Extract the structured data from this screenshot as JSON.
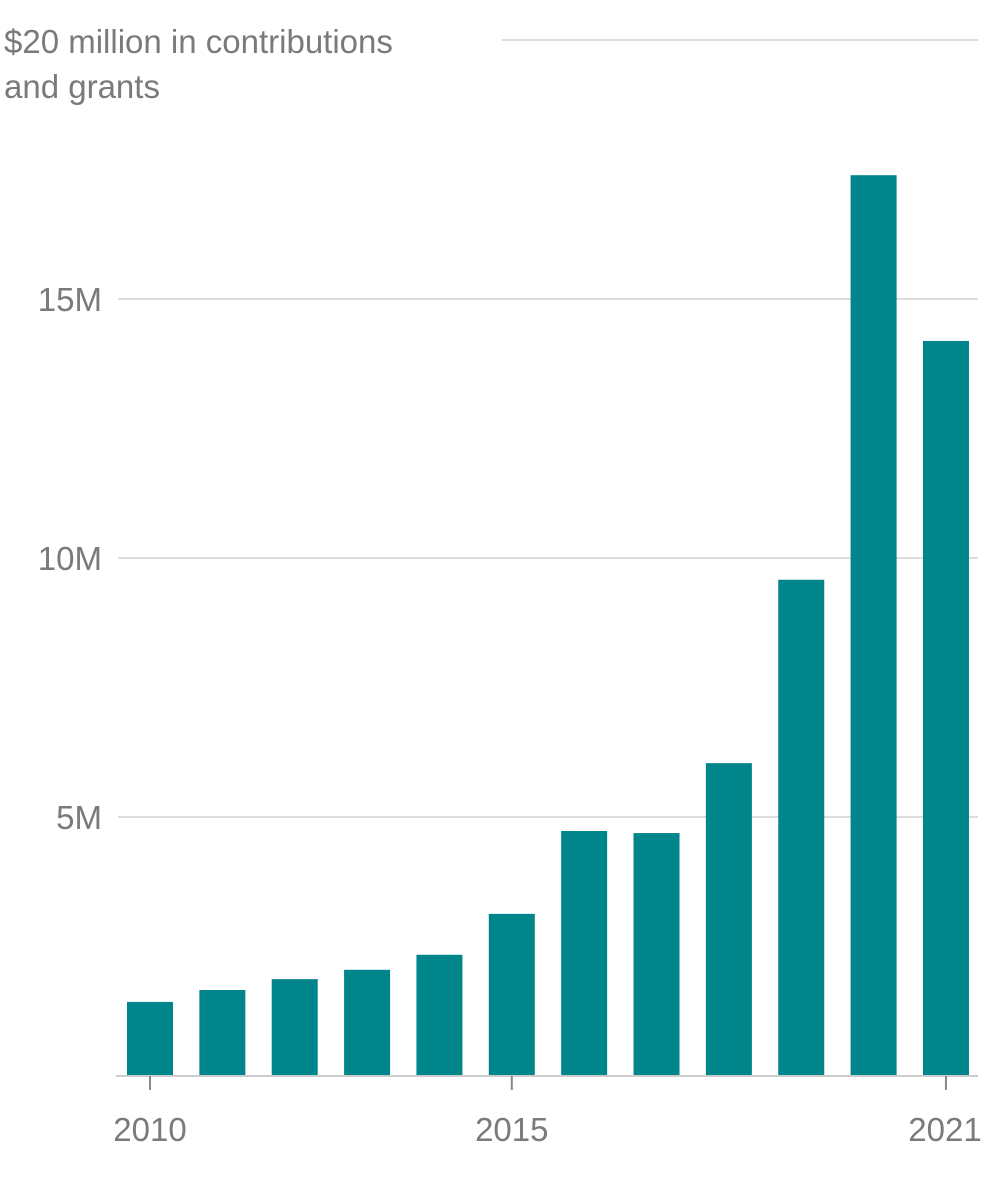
{
  "chart_data": {
    "type": "bar",
    "title_lines": [
      "$20 million in contributions",
      "and grants"
    ],
    "categories": [
      "2010",
      "2011",
      "2012",
      "2013",
      "2014",
      "2015",
      "2016",
      "2017",
      "2018",
      "2019",
      "2020",
      "2021"
    ],
    "values": [
      1.43,
      1.66,
      1.87,
      2.05,
      2.34,
      3.13,
      4.73,
      4.69,
      6.04,
      9.58,
      17.39,
      14.19
    ],
    "unit": "million USD",
    "ylim": [
      0,
      20
    ],
    "yticks": [
      {
        "value": 5,
        "label": "5M"
      },
      {
        "value": 10,
        "label": "10M"
      },
      {
        "value": 15,
        "label": "15M"
      }
    ],
    "xticks": [
      {
        "category": "2010",
        "label": "2010"
      },
      {
        "category": "2015",
        "label": "2015"
      },
      {
        "category": "2021",
        "label": "2021"
      }
    ],
    "grid": true,
    "bar_color": "#00858a",
    "grid_color": "#dddddd",
    "text_color": "#7a7a7a"
  }
}
